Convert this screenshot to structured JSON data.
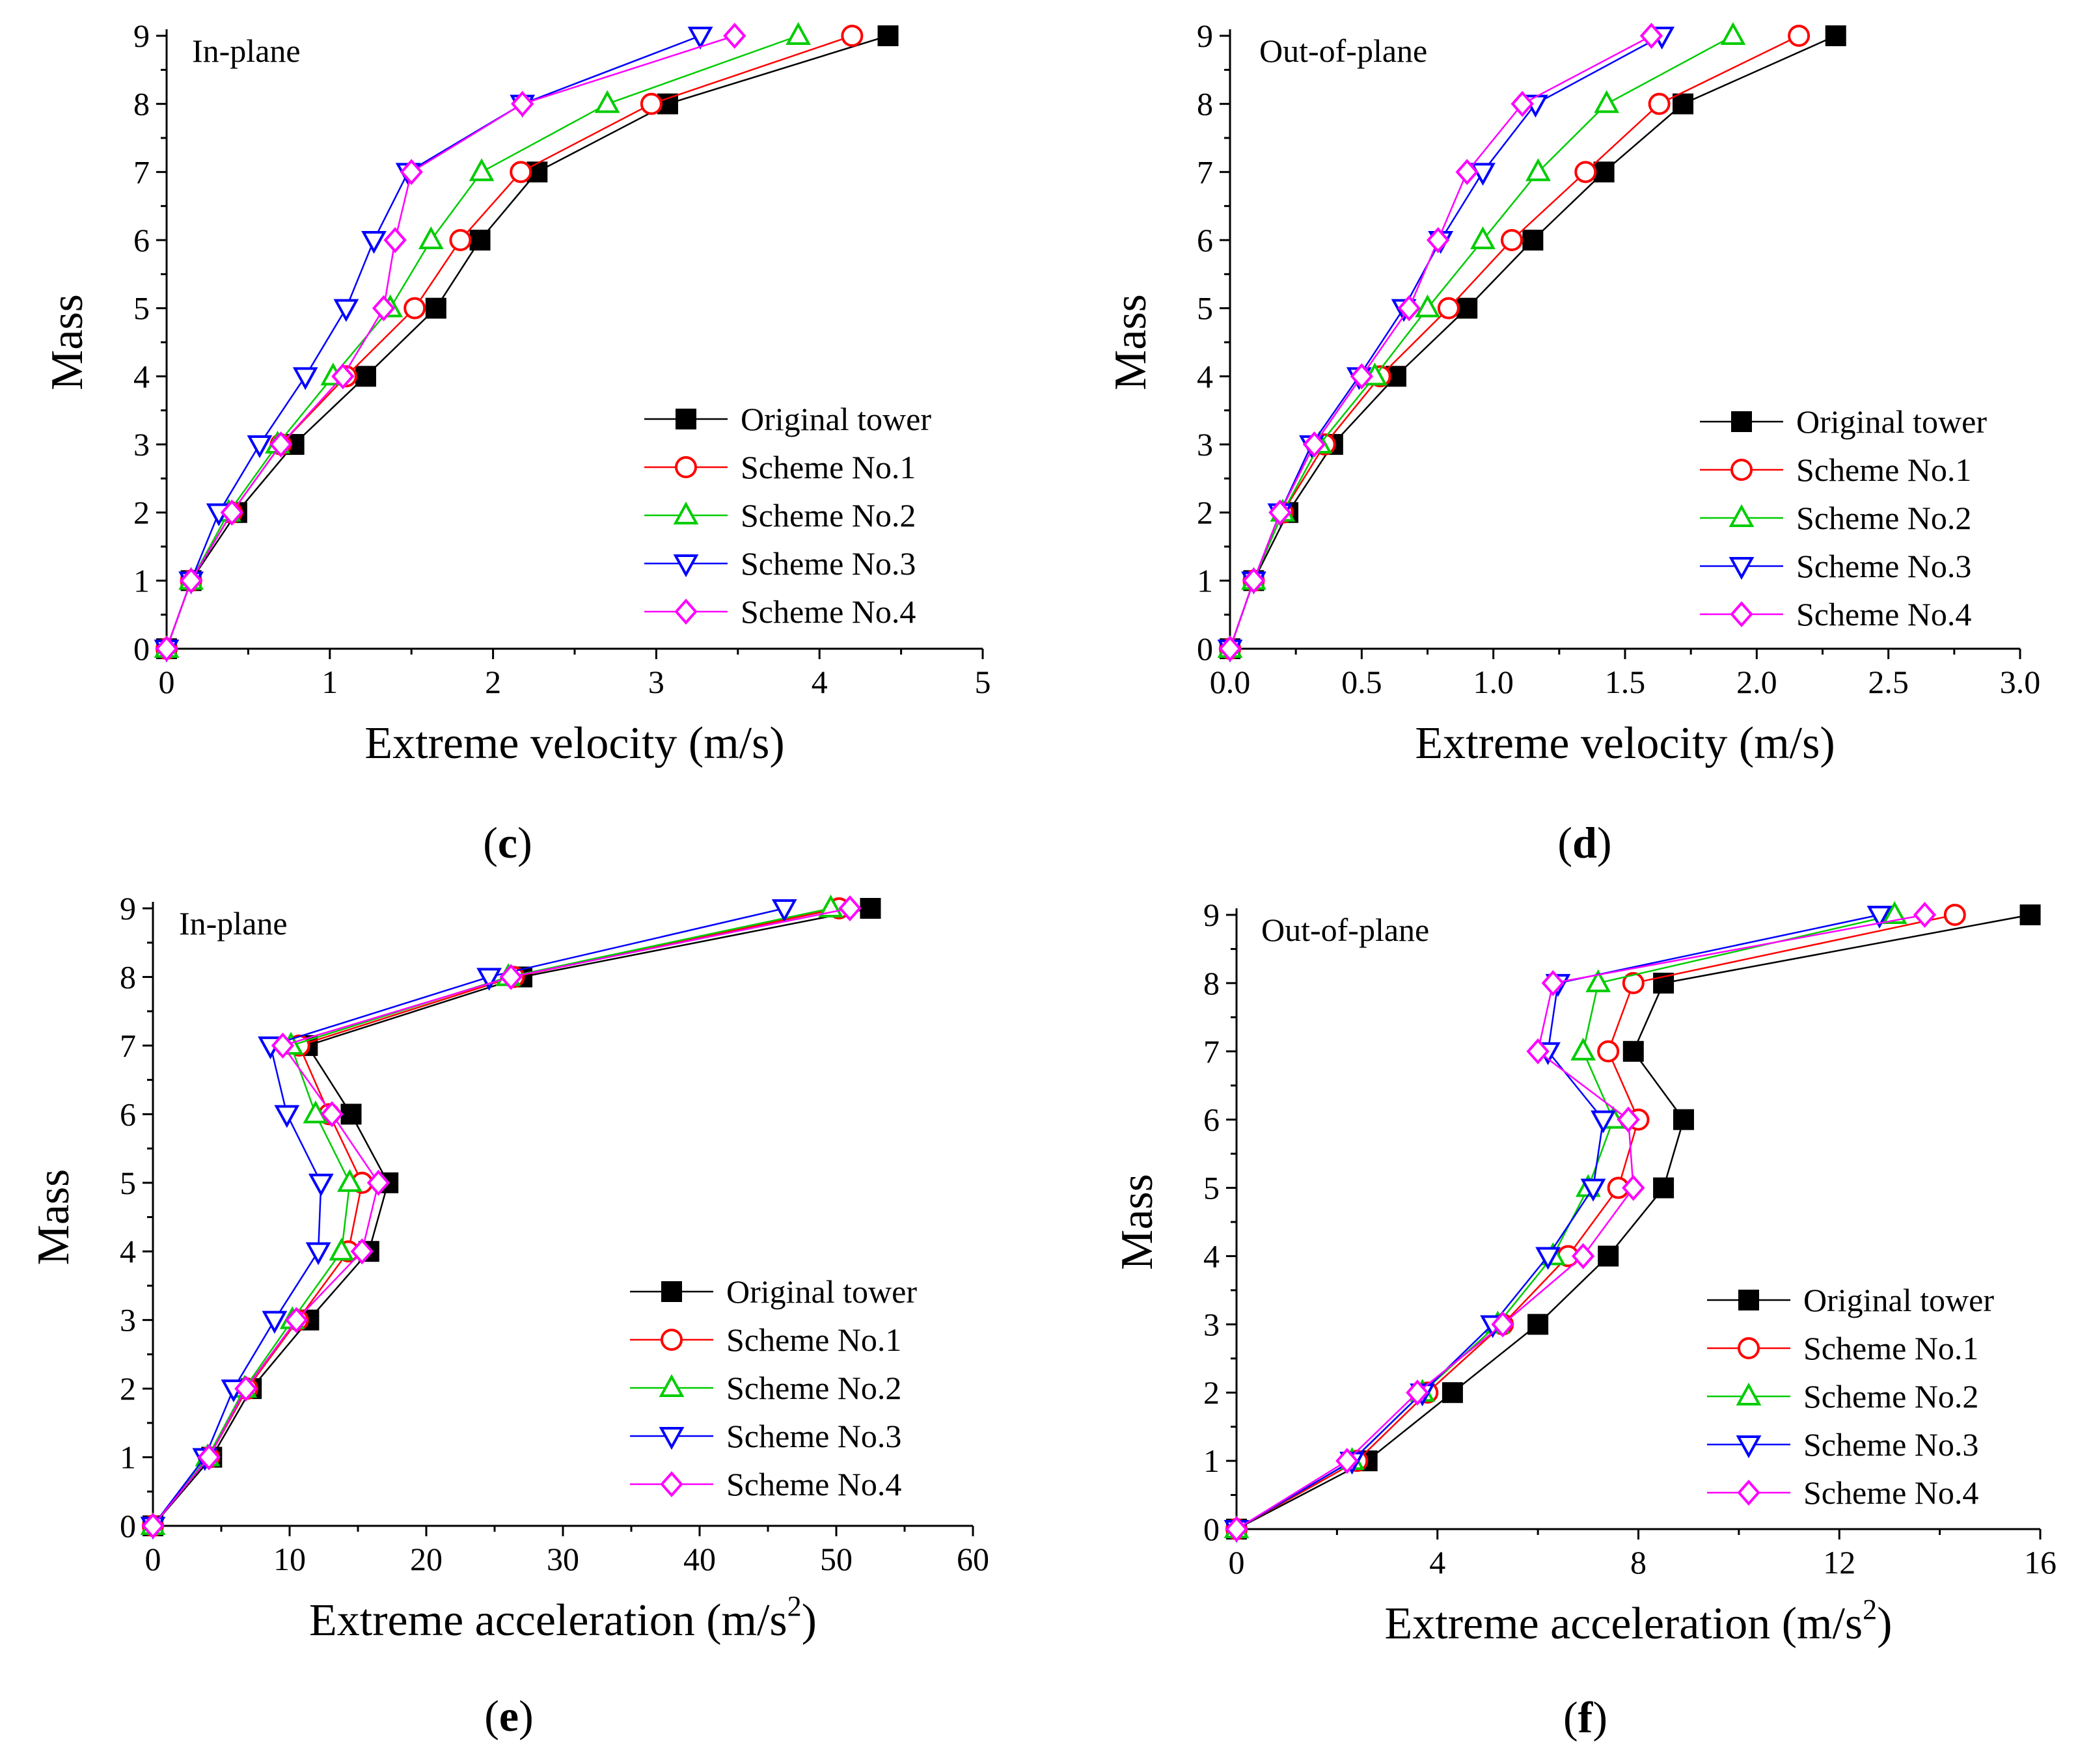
{
  "figure": {
    "series_style": [
      {
        "color": "#000000",
        "marker": "square-filled"
      },
      {
        "color": "#ff0000",
        "marker": "circle-open"
      },
      {
        "color": "#00cc00",
        "marker": "triangle-up-open"
      },
      {
        "color": "#0000ff",
        "marker": "triangle-down-open"
      },
      {
        "color": "#ff00ff",
        "marker": "diamond-open"
      }
    ]
  },
  "chart_data": [
    {
      "panel": "(c)",
      "panel_letter": "c",
      "type": "line",
      "annotation": "In-plane",
      "xlabel": "Extreme velocity (m/s)",
      "ylabel": "Mass",
      "xlim": [
        0,
        5
      ],
      "ylim": [
        0,
        9
      ],
      "xticks": [
        0,
        1,
        2,
        3,
        4,
        5
      ],
      "xtick_labels": [
        "0",
        "1",
        "2",
        "3",
        "4",
        "5"
      ],
      "yticks": [
        0,
        1,
        2,
        3,
        4,
        5,
        6,
        7,
        8,
        9
      ],
      "ytick_labels": [
        "0",
        "1",
        "2",
        "3",
        "4",
        "5",
        "6",
        "7",
        "8",
        "9"
      ],
      "legend_position": "bottom-right",
      "series": [
        {
          "name": "Original tower",
          "values": [
            [
              0,
              0
            ],
            [
              0.15,
              1
            ],
            [
              0.43,
              2
            ],
            [
              0.78,
              3
            ],
            [
              1.22,
              4
            ],
            [
              1.65,
              5
            ],
            [
              1.92,
              6
            ],
            [
              2.27,
              7
            ],
            [
              3.07,
              8
            ],
            [
              4.42,
              9
            ]
          ]
        },
        {
          "name": "Scheme No.1",
          "values": [
            [
              0,
              0
            ],
            [
              0.15,
              1
            ],
            [
              0.4,
              2
            ],
            [
              0.7,
              3
            ],
            [
              1.1,
              4
            ],
            [
              1.52,
              5
            ],
            [
              1.8,
              6
            ],
            [
              2.17,
              7
            ],
            [
              2.97,
              8
            ],
            [
              4.2,
              9
            ]
          ]
        },
        {
          "name": "Scheme No.2",
          "values": [
            [
              0,
              0
            ],
            [
              0.15,
              1
            ],
            [
              0.38,
              2
            ],
            [
              0.68,
              3
            ],
            [
              1.02,
              4
            ],
            [
              1.37,
              5
            ],
            [
              1.62,
              6
            ],
            [
              1.93,
              7
            ],
            [
              2.7,
              8
            ],
            [
              3.87,
              9
            ]
          ]
        },
        {
          "name": "Scheme No.3",
          "values": [
            [
              0,
              0
            ],
            [
              0.15,
              1
            ],
            [
              0.32,
              2
            ],
            [
              0.57,
              3
            ],
            [
              0.85,
              4
            ],
            [
              1.1,
              5
            ],
            [
              1.27,
              6
            ],
            [
              1.48,
              7
            ],
            [
              2.18,
              8
            ],
            [
              3.27,
              9
            ]
          ]
        },
        {
          "name": "Scheme No.4",
          "values": [
            [
              0,
              0
            ],
            [
              0.15,
              1
            ],
            [
              0.4,
              2
            ],
            [
              0.7,
              3
            ],
            [
              1.08,
              4
            ],
            [
              1.33,
              5
            ],
            [
              1.4,
              6
            ],
            [
              1.5,
              7
            ],
            [
              2.18,
              8
            ],
            [
              3.48,
              9
            ]
          ]
        }
      ]
    },
    {
      "panel": "(d)",
      "panel_letter": "d",
      "type": "line",
      "annotation": "Out-of-plane",
      "xlabel": "Extreme velocity (m/s)",
      "ylabel": "Mass",
      "xlim": [
        0,
        3
      ],
      "ylim": [
        0,
        9
      ],
      "xticks": [
        0,
        0.5,
        1,
        1.5,
        2,
        2.5,
        3
      ],
      "xtick_labels": [
        "0.0",
        "0.5",
        "1.0",
        "1.5",
        "2.0",
        "2.5",
        "3.0"
      ],
      "yticks": [
        0,
        1,
        2,
        3,
        4,
        5,
        6,
        7,
        8,
        9
      ],
      "ytick_labels": [
        "0",
        "1",
        "2",
        "3",
        "4",
        "5",
        "6",
        "7",
        "8",
        "9"
      ],
      "legend_position": "bottom-right",
      "series": [
        {
          "name": "Original tower",
          "values": [
            [
              0,
              0
            ],
            [
              0.09,
              1
            ],
            [
              0.22,
              2
            ],
            [
              0.39,
              3
            ],
            [
              0.63,
              4
            ],
            [
              0.9,
              5
            ],
            [
              1.15,
              6
            ],
            [
              1.42,
              7
            ],
            [
              1.72,
              8
            ],
            [
              2.3,
              9
            ]
          ]
        },
        {
          "name": "Scheme No.1",
          "values": [
            [
              0,
              0
            ],
            [
              0.09,
              1
            ],
            [
              0.2,
              2
            ],
            [
              0.36,
              3
            ],
            [
              0.57,
              4
            ],
            [
              0.83,
              5
            ],
            [
              1.07,
              6
            ],
            [
              1.35,
              7
            ],
            [
              1.63,
              8
            ],
            [
              2.16,
              9
            ]
          ]
        },
        {
          "name": "Scheme No.2",
          "values": [
            [
              0,
              0
            ],
            [
              0.09,
              1
            ],
            [
              0.2,
              2
            ],
            [
              0.34,
              3
            ],
            [
              0.55,
              4
            ],
            [
              0.75,
              5
            ],
            [
              0.96,
              6
            ],
            [
              1.17,
              7
            ],
            [
              1.43,
              8
            ],
            [
              1.91,
              9
            ]
          ]
        },
        {
          "name": "Scheme No.3",
          "values": [
            [
              0,
              0
            ],
            [
              0.09,
              1
            ],
            [
              0.19,
              2
            ],
            [
              0.31,
              3
            ],
            [
              0.49,
              4
            ],
            [
              0.66,
              5
            ],
            [
              0.8,
              6
            ],
            [
              0.96,
              7
            ],
            [
              1.16,
              8
            ],
            [
              1.64,
              9
            ]
          ]
        },
        {
          "name": "Scheme No.4",
          "values": [
            [
              0,
              0
            ],
            [
              0.09,
              1
            ],
            [
              0.19,
              2
            ],
            [
              0.32,
              3
            ],
            [
              0.5,
              4
            ],
            [
              0.68,
              5
            ],
            [
              0.79,
              6
            ],
            [
              0.9,
              7
            ],
            [
              1.11,
              8
            ],
            [
              1.6,
              9
            ]
          ]
        }
      ]
    },
    {
      "panel": "(e)",
      "panel_letter": "e",
      "type": "line",
      "annotation": "In-plane",
      "xlabel": "Extreme acceleration (m/s",
      "xlabel_sup": "2",
      "xlabel_tail": ")",
      "ylabel": "Mass",
      "xlim": [
        0,
        60
      ],
      "ylim": [
        0,
        9
      ],
      "xticks": [
        0,
        10,
        20,
        30,
        40,
        50,
        60
      ],
      "xtick_labels": [
        "0",
        "10",
        "20",
        "30",
        "40",
        "50",
        "60"
      ],
      "yticks": [
        0,
        1,
        2,
        3,
        4,
        5,
        6,
        7,
        8,
        9
      ],
      "ytick_labels": [
        "0",
        "1",
        "2",
        "3",
        "4",
        "5",
        "6",
        "7",
        "8",
        "9"
      ],
      "legend_position": "bottom-right",
      "series": [
        {
          "name": "Original tower",
          "values": [
            [
              0,
              0
            ],
            [
              4.3,
              1
            ],
            [
              7.2,
              2
            ],
            [
              11.4,
              3
            ],
            [
              15.8,
              4
            ],
            [
              17.2,
              5
            ],
            [
              14.5,
              6
            ],
            [
              11.3,
              7
            ],
            [
              27.0,
              8
            ],
            [
              52.5,
              9
            ]
          ]
        },
        {
          "name": "Scheme No.1",
          "values": [
            [
              0,
              0
            ],
            [
              4.1,
              1
            ],
            [
              6.9,
              2
            ],
            [
              10.6,
              3
            ],
            [
              14.3,
              4
            ],
            [
              15.3,
              5
            ],
            [
              12.9,
              6
            ],
            [
              10.7,
              7
            ],
            [
              26.4,
              8
            ],
            [
              50.2,
              9
            ]
          ]
        },
        {
          "name": "Scheme No.2",
          "values": [
            [
              0,
              0
            ],
            [
              4.0,
              1
            ],
            [
              6.7,
              2
            ],
            [
              10.2,
              3
            ],
            [
              13.8,
              4
            ],
            [
              14.4,
              5
            ],
            [
              11.9,
              6
            ],
            [
              10.1,
              7
            ],
            [
              26.0,
              8
            ],
            [
              49.6,
              9
            ]
          ]
        },
        {
          "name": "Scheme No.3",
          "values": [
            [
              0,
              0
            ],
            [
              3.8,
              1
            ],
            [
              5.9,
              2
            ],
            [
              8.9,
              3
            ],
            [
              12.1,
              4
            ],
            [
              12.3,
              5
            ],
            [
              9.8,
              6
            ],
            [
              8.6,
              7
            ],
            [
              24.6,
              8
            ],
            [
              46.2,
              9
            ]
          ]
        },
        {
          "name": "Scheme No.4",
          "values": [
            [
              0,
              0
            ],
            [
              4.1,
              1
            ],
            [
              6.8,
              2
            ],
            [
              10.5,
              3
            ],
            [
              15.3,
              4
            ],
            [
              16.5,
              5
            ],
            [
              13.1,
              6
            ],
            [
              9.5,
              7
            ],
            [
              26.2,
              8
            ],
            [
              51.0,
              9
            ]
          ]
        }
      ]
    },
    {
      "panel": "(f)",
      "panel_letter": "f",
      "type": "line",
      "annotation": "Out-of-plane",
      "xlabel": "Extreme acceleration (m/s",
      "xlabel_sup": "2",
      "xlabel_tail": ")",
      "ylabel": "Mass",
      "xlim": [
        0,
        16
      ],
      "ylim": [
        0,
        9
      ],
      "xticks": [
        0,
        4,
        8,
        12,
        16
      ],
      "xtick_labels": [
        "0",
        "4",
        "8",
        "12",
        "16"
      ],
      "yticks": [
        0,
        1,
        2,
        3,
        4,
        5,
        6,
        7,
        8,
        9
      ],
      "ytick_labels": [
        "0",
        "1",
        "2",
        "3",
        "4",
        "5",
        "6",
        "7",
        "8",
        "9"
      ],
      "legend_position": "bottom-right",
      "series": [
        {
          "name": "Original tower",
          "values": [
            [
              0,
              0
            ],
            [
              2.6,
              1
            ],
            [
              4.3,
              2
            ],
            [
              6.0,
              3
            ],
            [
              7.4,
              4
            ],
            [
              8.5,
              5
            ],
            [
              8.9,
              6
            ],
            [
              7.9,
              7
            ],
            [
              8.5,
              8
            ],
            [
              15.8,
              9
            ]
          ]
        },
        {
          "name": "Scheme No.1",
          "values": [
            [
              0,
              0
            ],
            [
              2.4,
              1
            ],
            [
              3.8,
              2
            ],
            [
              5.3,
              3
            ],
            [
              6.6,
              4
            ],
            [
              7.6,
              5
            ],
            [
              8.0,
              6
            ],
            [
              7.4,
              7
            ],
            [
              7.9,
              8
            ],
            [
              14.3,
              9
            ]
          ]
        },
        {
          "name": "Scheme No.2",
          "values": [
            [
              0,
              0
            ],
            [
              2.3,
              1
            ],
            [
              3.7,
              2
            ],
            [
              5.2,
              3
            ],
            [
              6.3,
              4
            ],
            [
              7.0,
              5
            ],
            [
              7.5,
              6
            ],
            [
              6.9,
              7
            ],
            [
              7.2,
              8
            ],
            [
              13.1,
              9
            ]
          ]
        },
        {
          "name": "Scheme No.3",
          "values": [
            [
              0,
              0
            ],
            [
              2.3,
              1
            ],
            [
              3.7,
              2
            ],
            [
              5.1,
              3
            ],
            [
              6.2,
              4
            ],
            [
              7.1,
              5
            ],
            [
              7.3,
              6
            ],
            [
              6.2,
              7
            ],
            [
              6.4,
              8
            ],
            [
              12.8,
              9
            ]
          ]
        },
        {
          "name": "Scheme No.4",
          "values": [
            [
              0,
              0
            ],
            [
              2.2,
              1
            ],
            [
              3.6,
              2
            ],
            [
              5.3,
              3
            ],
            [
              6.9,
              4
            ],
            [
              7.9,
              5
            ],
            [
              7.8,
              6
            ],
            [
              6.0,
              7
            ],
            [
              6.3,
              8
            ],
            [
              13.7,
              9
            ]
          ]
        }
      ]
    }
  ]
}
